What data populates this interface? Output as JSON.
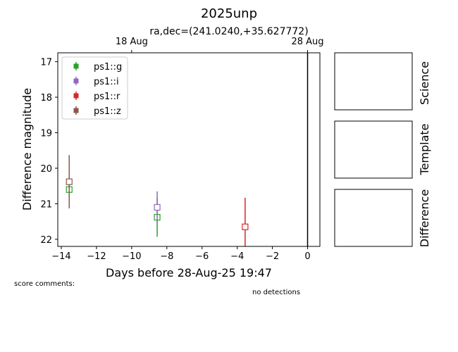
{
  "chart_data": {
    "type": "scatter",
    "title": "2025unp",
    "subtitle": "ra,dec=(241.0240,+35.627772)",
    "xlabel": "Days before 28-Aug-25 19:47",
    "ylabel": "Difference magnitude",
    "xlim": [
      -14.2,
      0.7
    ],
    "ylim": [
      22.2,
      16.75
    ],
    "y_inverted": true,
    "x_ticks": [
      -14,
      -12,
      -10,
      -8,
      -6,
      -4,
      -2,
      0
    ],
    "x_tick_labels": [
      "−14",
      "−12",
      "−10",
      "−8",
      "−6",
      "−4",
      "−2",
      "0"
    ],
    "y_ticks": [
      17,
      18,
      19,
      20,
      21,
      22
    ],
    "y_tick_labels": [
      "17",
      "18",
      "19",
      "20",
      "21",
      "22"
    ],
    "top_axis_ticks": [
      {
        "x": -10,
        "label": "18 Aug"
      },
      {
        "x": 0,
        "label": "28 Aug"
      }
    ],
    "vertical_line_x": 0,
    "grid": false,
    "legend_position": "top-left",
    "series": [
      {
        "name": "ps1::g",
        "color": "#2ca02c",
        "points": [
          {
            "x": -13.55,
            "y": 20.6,
            "err": 0.0
          },
          {
            "x": -8.55,
            "y": 21.38,
            "err": 0.55
          }
        ]
      },
      {
        "name": "ps1::i",
        "color": "#9467bd",
        "points": [
          {
            "x": -8.55,
            "y": 21.1,
            "err": 0.45
          }
        ]
      },
      {
        "name": "ps1::r",
        "color": "#d62728",
        "points": [
          {
            "x": -3.55,
            "y": 21.65,
            "err": 0.82
          }
        ]
      },
      {
        "name": "ps1::z",
        "color": "#8c564b",
        "points": [
          {
            "x": -13.55,
            "y": 20.38,
            "err": 0.75
          }
        ]
      }
    ]
  },
  "panels": [
    "Science",
    "Template",
    "Difference"
  ],
  "notes": {
    "score_comments": "score comments:",
    "no_detections": "no detections"
  }
}
